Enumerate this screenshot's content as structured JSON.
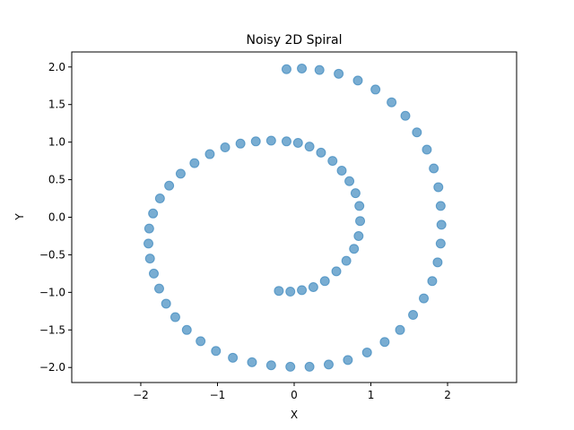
{
  "chart_data": {
    "type": "scatter",
    "title": "Noisy 2D Spiral",
    "xlabel": "X",
    "ylabel": "Y",
    "xlim": [
      -2.9,
      2.9
    ],
    "ylim": [
      -2.2,
      2.2
    ],
    "xticks": [
      -2,
      -1,
      0,
      1,
      2
    ],
    "xtick_labels": [
      "−2",
      "−1",
      "0",
      "1",
      "2"
    ],
    "yticks": [
      -2.0,
      -1.5,
      -1.0,
      -0.5,
      0.0,
      0.5,
      1.0,
      1.5,
      2.0
    ],
    "ytick_labels": [
      "−2.0",
      "−1.5",
      "−1.0",
      "−0.5",
      "0.0",
      "0.5",
      "1.0",
      "1.5",
      "2.0"
    ],
    "grid": false,
    "legend": "none",
    "marker_color": "#1f77b4",
    "marker_opacity": 0.6,
    "series": [
      {
        "points": [
          [
            -0.2,
            -0.98
          ],
          [
            -0.05,
            -0.99
          ],
          [
            0.1,
            -0.97
          ],
          [
            0.25,
            -0.93
          ],
          [
            0.4,
            -0.85
          ],
          [
            0.55,
            -0.72
          ],
          [
            0.68,
            -0.58
          ],
          [
            0.78,
            -0.42
          ],
          [
            0.84,
            -0.25
          ],
          [
            0.86,
            -0.05
          ],
          [
            0.85,
            0.15
          ],
          [
            0.8,
            0.32
          ],
          [
            0.72,
            0.48
          ],
          [
            0.62,
            0.62
          ],
          [
            0.5,
            0.75
          ],
          [
            0.35,
            0.86
          ],
          [
            0.2,
            0.94
          ],
          [
            0.05,
            0.99
          ],
          [
            -0.1,
            1.01
          ],
          [
            -0.3,
            1.02
          ],
          [
            -0.5,
            1.01
          ],
          [
            -0.7,
            0.98
          ],
          [
            -0.9,
            0.93
          ],
          [
            -1.1,
            0.84
          ],
          [
            -1.3,
            0.72
          ],
          [
            -1.48,
            0.58
          ],
          [
            -1.63,
            0.42
          ],
          [
            -1.75,
            0.25
          ],
          [
            -1.84,
            0.05
          ],
          [
            -1.89,
            -0.15
          ],
          [
            -1.9,
            -0.35
          ],
          [
            -1.88,
            -0.55
          ],
          [
            -1.83,
            -0.75
          ],
          [
            -1.76,
            -0.95
          ],
          [
            -1.67,
            -1.15
          ],
          [
            -1.55,
            -1.33
          ],
          [
            -1.4,
            -1.5
          ],
          [
            -1.22,
            -1.65
          ],
          [
            -1.02,
            -1.78
          ],
          [
            -0.8,
            -1.87
          ],
          [
            -0.55,
            -1.93
          ],
          [
            -0.3,
            -1.97
          ],
          [
            -0.05,
            -1.99
          ],
          [
            0.2,
            -1.99
          ],
          [
            0.45,
            -1.96
          ],
          [
            0.7,
            -1.9
          ],
          [
            0.95,
            -1.8
          ],
          [
            1.18,
            -1.66
          ],
          [
            1.38,
            -1.5
          ],
          [
            1.55,
            -1.3
          ],
          [
            1.69,
            -1.08
          ],
          [
            1.8,
            -0.85
          ],
          [
            1.87,
            -0.6
          ],
          [
            1.91,
            -0.35
          ],
          [
            1.92,
            -0.1
          ],
          [
            1.91,
            0.15
          ],
          [
            1.88,
            0.4
          ],
          [
            1.82,
            0.65
          ],
          [
            1.73,
            0.9
          ],
          [
            1.6,
            1.13
          ],
          [
            1.45,
            1.35
          ],
          [
            1.27,
            1.53
          ],
          [
            1.06,
            1.7
          ],
          [
            0.83,
            1.82
          ],
          [
            0.58,
            1.91
          ],
          [
            0.33,
            1.96
          ],
          [
            0.1,
            1.98
          ],
          [
            -0.1,
            1.97
          ]
        ]
      }
    ]
  }
}
